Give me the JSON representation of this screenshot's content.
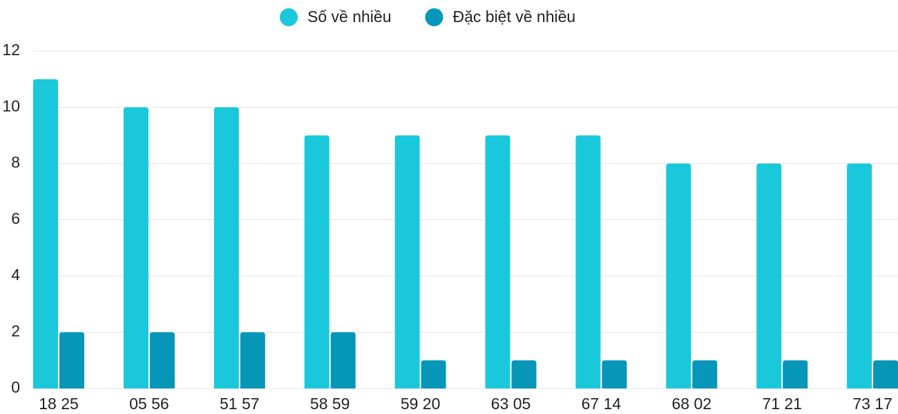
{
  "chart_data": {
    "type": "bar",
    "categories": [
      "18 25",
      "05 56",
      "51 57",
      "58 59",
      "59 20",
      "63 05",
      "67 14",
      "68 02",
      "71 21",
      "73 17"
    ],
    "series": [
      {
        "name": "Số về nhiều",
        "color": "#1ac8db",
        "values": [
          11,
          10,
          10,
          9,
          9,
          9,
          9,
          8,
          8,
          8
        ]
      },
      {
        "name": "Đặc biệt về nhiều",
        "color": "#0696b8",
        "values": [
          2,
          2,
          2,
          2,
          1,
          1,
          1,
          1,
          1,
          1
        ]
      }
    ],
    "ylim": [
      0,
      12
    ],
    "yticks": [
      0,
      2,
      4,
      6,
      8,
      10,
      12
    ],
    "grid": true,
    "legend": "top"
  }
}
